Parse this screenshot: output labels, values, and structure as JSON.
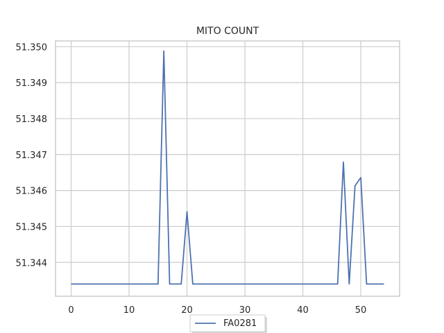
{
  "chart_data": {
    "type": "line",
    "title": "MITO COUNT",
    "xlabel": "",
    "ylabel": "",
    "x": [
      0,
      1,
      2,
      3,
      4,
      5,
      6,
      7,
      8,
      9,
      10,
      11,
      12,
      13,
      14,
      15,
      16,
      17,
      18,
      19,
      20,
      21,
      22,
      23,
      24,
      25,
      26,
      27,
      28,
      29,
      30,
      31,
      32,
      33,
      34,
      35,
      36,
      37,
      38,
      39,
      40,
      41,
      42,
      43,
      44,
      45,
      46,
      47,
      48,
      49,
      50,
      51,
      52,
      53,
      54
    ],
    "series": [
      {
        "name": "FA0281",
        "color": "#4c72b0",
        "values": [
          51.3434,
          51.3434,
          51.3434,
          51.3434,
          51.3434,
          51.3434,
          51.3434,
          51.3434,
          51.3434,
          51.3434,
          51.3434,
          51.3434,
          51.3434,
          51.3434,
          51.3434,
          51.3434,
          51.34988,
          51.3434,
          51.3434,
          51.3434,
          51.34541,
          51.3434,
          51.3434,
          51.3434,
          51.3434,
          51.3434,
          51.3434,
          51.3434,
          51.3434,
          51.3434,
          51.3434,
          51.3434,
          51.3434,
          51.3434,
          51.3434,
          51.3434,
          51.3434,
          51.3434,
          51.3434,
          51.3434,
          51.3434,
          51.3434,
          51.3434,
          51.3434,
          51.3434,
          51.3434,
          51.3434,
          51.34679,
          51.3434,
          51.34613,
          51.34636,
          51.3434,
          51.3434,
          51.3434,
          51.3434
        ]
      }
    ],
    "xlim": [
      -2.7,
      56.7
    ],
    "ylim": [
      51.34306,
      51.35016
    ],
    "xticks": [
      0,
      10,
      20,
      30,
      40,
      50
    ],
    "yticks": [
      51.344,
      51.345,
      51.346,
      51.347,
      51.348,
      51.349,
      51.35
    ],
    "ytick_labels": [
      "51.344",
      "51.345",
      "51.346",
      "51.347",
      "51.348",
      "51.349",
      "51.350"
    ],
    "grid": true,
    "legend": "bottom-center",
    "colors": {
      "grid": "#cccccc",
      "frame": "#cccccc",
      "line": "#4c72b0"
    }
  }
}
